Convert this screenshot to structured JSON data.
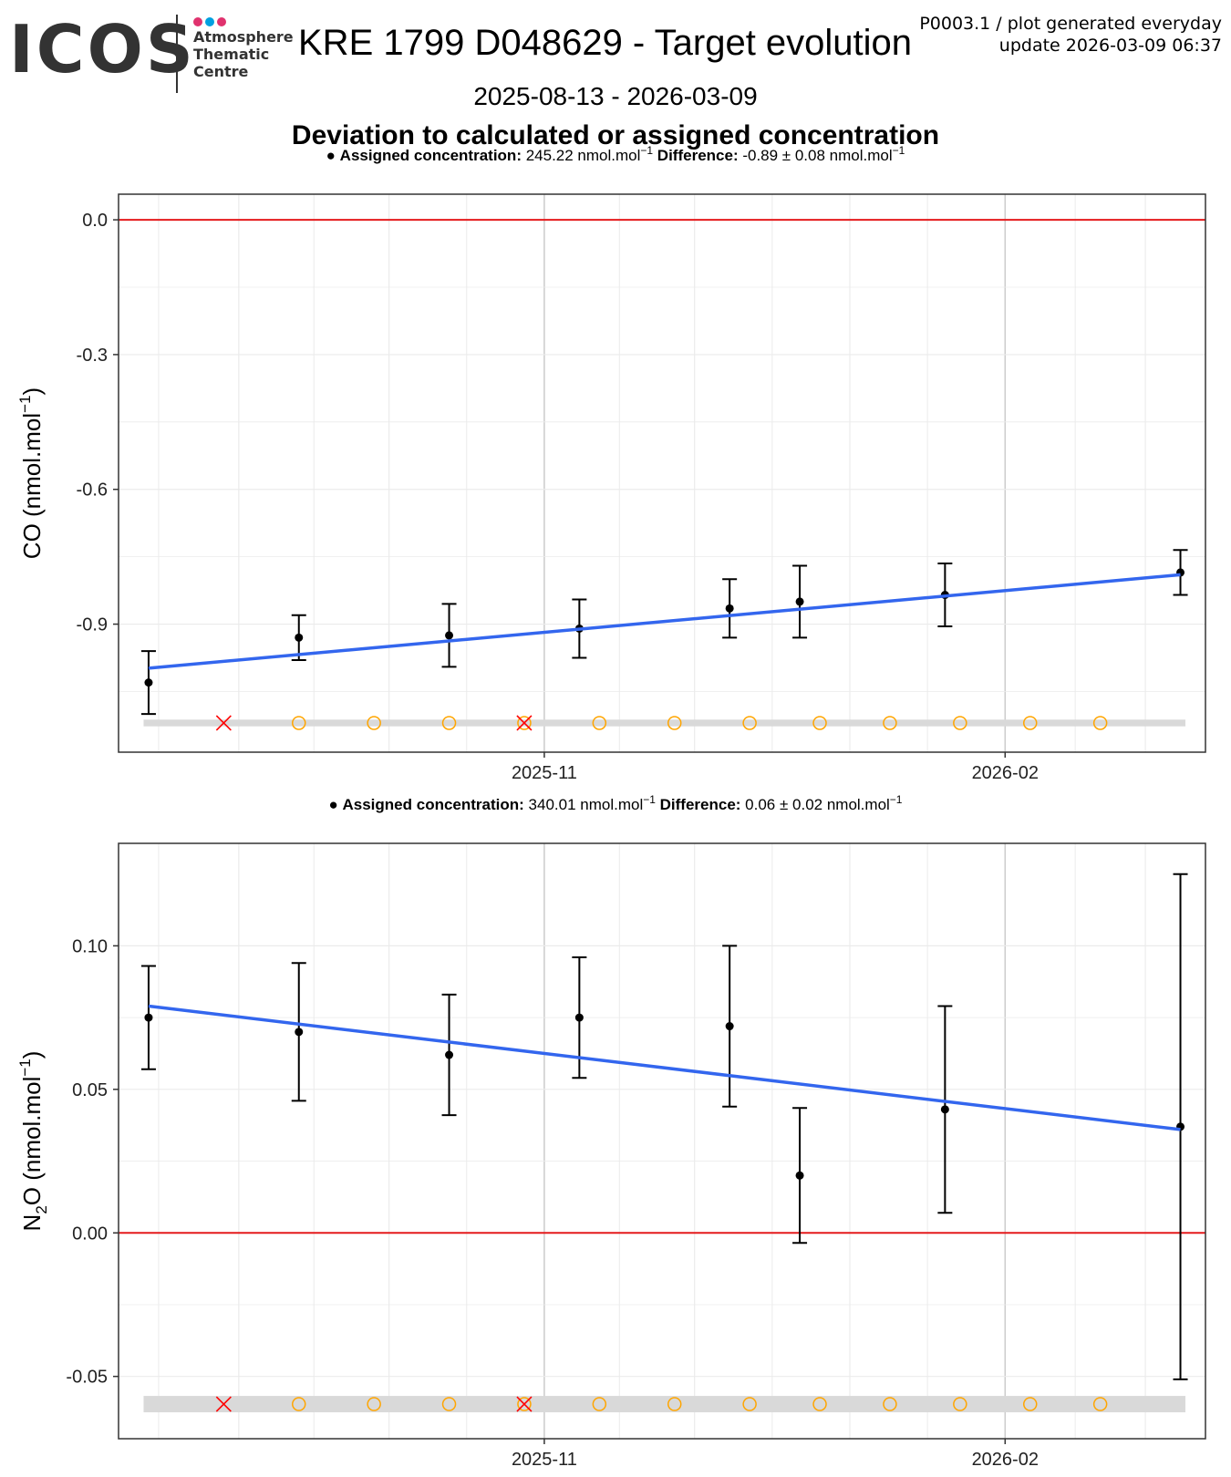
{
  "header": {
    "logo_text": "ICOS",
    "logo_sub": [
      "Atmosphere",
      "Thematic",
      "Centre"
    ],
    "logo_colors": [
      "#e0326e",
      "#00a0e0",
      "#e0326e"
    ],
    "title": "KRE 1799 D048629 - Target evolution",
    "meta_line1": "P0003.1 / plot generated everyday",
    "meta_line2": "update  2026-03-09 06:37",
    "date_range": "2025-08-13 - 2026-03-09",
    "subtitle": "Deviation to calculated or assigned concentration"
  },
  "colors": {
    "zero_line": "#e41a1c",
    "fit_line": "#3366ee",
    "points": "#000000",
    "open_circle": "#ffa500",
    "cross": "#ff0000",
    "band": "#d9d9d9",
    "grid": "#ebebeb",
    "grid_major_v": "#cccccc"
  },
  "chart_data": [
    {
      "type": "scatter",
      "name": "CO",
      "legend_point_label": "●",
      "legend_assigned_label": "Assigned concentration:",
      "legend_assigned_value": "245.22 nmol.mol",
      "legend_assigned_exp": "−1",
      "legend_diff_label": "Difference:",
      "legend_diff_value": "-0.89 ± 0.08 nmol.mol",
      "legend_diff_exp": "−1",
      "ylabel": "CO (nmol.mol",
      "ylabel_exp": "−1",
      "ylabel_tail": ")",
      "ylim": [
        -1.185,
        0.057
      ],
      "yticks": [
        0.0,
        -0.3,
        -0.6,
        -0.9
      ],
      "ytick_labels": [
        "0.0",
        "-0.3",
        "-0.6",
        "-0.9"
      ],
      "xlim": [
        "2025-08-08",
        "2026-03-13"
      ],
      "xticks": [
        "2025-11-01",
        "2026-02-01"
      ],
      "xtick_labels": [
        "2025-11",
        "2026-02"
      ],
      "points": [
        {
          "x": "2025-08-14",
          "y": -1.03,
          "err": 0.07
        },
        {
          "x": "2025-09-13",
          "y": -0.93,
          "err": 0.05
        },
        {
          "x": "2025-10-13",
          "y": -0.925,
          "err": 0.07
        },
        {
          "x": "2025-11-08",
          "y": -0.91,
          "err": 0.065
        },
        {
          "x": "2025-12-08",
          "y": -0.865,
          "err": 0.065
        },
        {
          "x": "2025-12-22",
          "y": -0.85,
          "err": 0.08
        },
        {
          "x": "2026-01-20",
          "y": -0.835,
          "err": 0.07
        },
        {
          "x": "2026-03-08",
          "y": -0.785,
          "err": 0.05
        }
      ],
      "fit": {
        "x": [
          "2025-08-14",
          "2026-03-08"
        ],
        "y": [
          -0.998,
          -0.79
        ]
      },
      "zero_line": 0.0,
      "band_y": [
        -1.12,
        -1.12
      ],
      "band_range": [
        -1.1275,
        -1.1125
      ],
      "markers": [
        {
          "x": "2025-08-29",
          "kind": "cross"
        },
        {
          "x": "2025-09-13",
          "kind": "circle"
        },
        {
          "x": "2025-09-28",
          "kind": "circle"
        },
        {
          "x": "2025-10-13",
          "kind": "circle"
        },
        {
          "x": "2025-10-28",
          "kind": "circle"
        },
        {
          "x": "2025-10-28",
          "kind": "cross"
        },
        {
          "x": "2025-11-12",
          "kind": "circle"
        },
        {
          "x": "2025-11-27",
          "kind": "circle"
        },
        {
          "x": "2025-12-12",
          "kind": "circle"
        },
        {
          "x": "2025-12-26",
          "kind": "circle"
        },
        {
          "x": "2026-01-09",
          "kind": "circle"
        },
        {
          "x": "2026-01-23",
          "kind": "circle"
        },
        {
          "x": "2026-02-06",
          "kind": "circle"
        },
        {
          "x": "2026-02-20",
          "kind": "circle"
        }
      ]
    },
    {
      "type": "scatter",
      "name": "N2O",
      "legend_point_label": "●",
      "legend_assigned_label": "Assigned concentration:",
      "legend_assigned_value": "340.01 nmol.mol",
      "legend_assigned_exp": "−1",
      "legend_diff_label": "Difference:",
      "legend_diff_value": "0.06 ± 0.02 nmol.mol",
      "legend_diff_exp": "−1",
      "ylabel": "N",
      "ylabel_sub": "2",
      "ylabel_mid": "O (nmol.mol",
      "ylabel_exp": "−1",
      "ylabel_tail": ")",
      "ylim": [
        -0.0717,
        0.1357
      ],
      "yticks": [
        0.1,
        0.05,
        0.0,
        -0.05
      ],
      "ytick_labels": [
        "0.10",
        "0.05",
        "0.00",
        "-0.05"
      ],
      "xlim": [
        "2025-08-08",
        "2026-03-13"
      ],
      "xticks": [
        "2025-11-01",
        "2026-02-01"
      ],
      "xtick_labels": [
        "2025-11",
        "2026-02"
      ],
      "points": [
        {
          "x": "2025-08-14",
          "y": 0.075,
          "err": 0.018
        },
        {
          "x": "2025-09-13",
          "y": 0.07,
          "err": 0.024
        },
        {
          "x": "2025-10-13",
          "y": 0.062,
          "err": 0.021
        },
        {
          "x": "2025-11-08",
          "y": 0.075,
          "err": 0.021
        },
        {
          "x": "2025-12-08",
          "y": 0.072,
          "err": 0.028
        },
        {
          "x": "2025-12-22",
          "y": 0.02,
          "err": 0.0235
        },
        {
          "x": "2026-01-20",
          "y": 0.043,
          "err": 0.036
        },
        {
          "x": "2026-03-08",
          "y": 0.037,
          "err": 0.088
        }
      ],
      "fit": {
        "x": [
          "2025-08-14",
          "2026-03-08"
        ],
        "y": [
          0.079,
          0.036
        ]
      },
      "zero_line": 0.0,
      "band_range": [
        -0.0625,
        -0.0568
      ],
      "markers": [
        {
          "x": "2025-08-29",
          "kind": "cross"
        },
        {
          "x": "2025-09-13",
          "kind": "circle"
        },
        {
          "x": "2025-09-28",
          "kind": "circle"
        },
        {
          "x": "2025-10-13",
          "kind": "circle"
        },
        {
          "x": "2025-10-28",
          "kind": "circle"
        },
        {
          "x": "2025-10-28",
          "kind": "cross"
        },
        {
          "x": "2025-11-12",
          "kind": "circle"
        },
        {
          "x": "2025-11-27",
          "kind": "circle"
        },
        {
          "x": "2025-12-12",
          "kind": "circle"
        },
        {
          "x": "2025-12-26",
          "kind": "circle"
        },
        {
          "x": "2026-01-09",
          "kind": "circle"
        },
        {
          "x": "2026-01-23",
          "kind": "circle"
        },
        {
          "x": "2026-02-06",
          "kind": "circle"
        },
        {
          "x": "2026-02-20",
          "kind": "circle"
        }
      ]
    }
  ]
}
